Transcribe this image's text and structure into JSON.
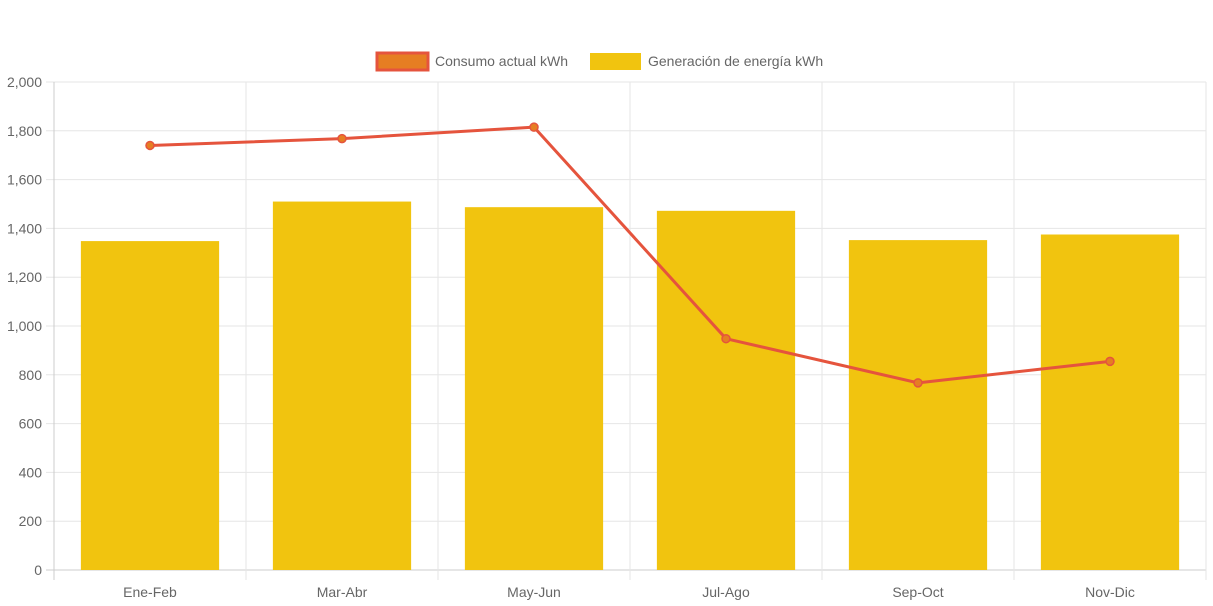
{
  "chart_data": {
    "type": "bar",
    "categories": [
      "Ene-Feb",
      "Mar-Abr",
      "May-Jun",
      "Jul-Ago",
      "Sep-Oct",
      "Nov-Dic"
    ],
    "series": [
      {
        "name": "Consumo actual kWh",
        "type": "line",
        "values": [
          1740,
          1768,
          1815,
          948,
          767,
          855
        ],
        "color": "#e5543d",
        "point_color": "#e67e22"
      },
      {
        "name": "Generación de energía kWh",
        "type": "bar",
        "values": [
          1348,
          1510,
          1487,
          1472,
          1352,
          1375
        ],
        "color": "#f1c40f"
      }
    ],
    "ylim": [
      0,
      2000
    ],
    "yticks": [
      0,
      200,
      400,
      600,
      800,
      1000,
      1200,
      1400,
      1600,
      1800,
      2000
    ],
    "ytick_labels": [
      "0",
      "200",
      "400",
      "600",
      "800",
      "1,000",
      "1,200",
      "1,400",
      "1,600",
      "1,800",
      "2,000"
    ],
    "grid": true,
    "legend": "top-center",
    "colors": {
      "grid": "#e6e6e6",
      "axis": "#cccccc",
      "text": "#666666"
    }
  }
}
